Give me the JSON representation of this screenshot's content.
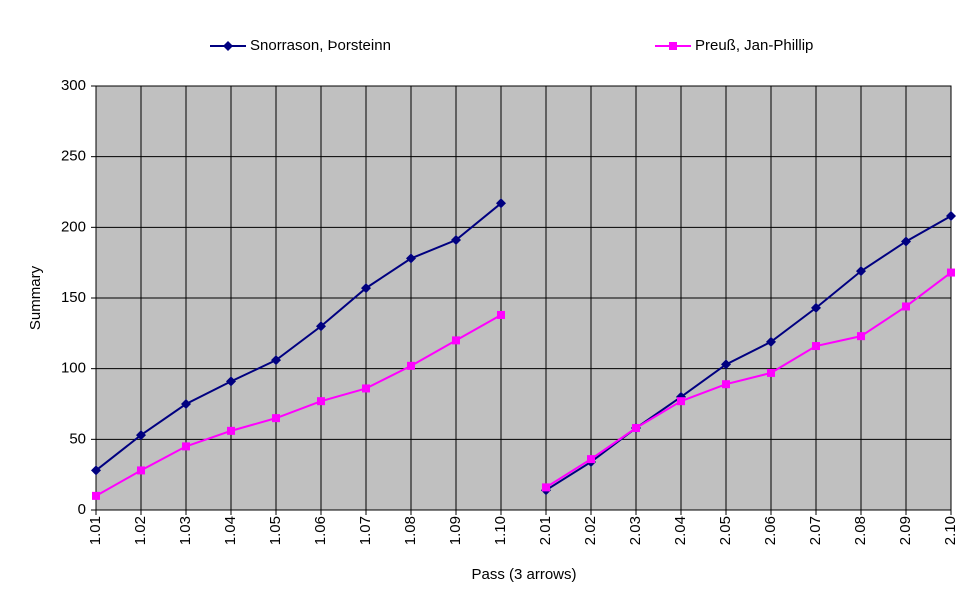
{
  "chart_data": {
    "type": "line",
    "x_label": "Pass (3 arrows)",
    "y_label": "Summary",
    "categories": [
      [
        "1.01",
        "1.02",
        "1.03",
        "1.04",
        "1.05",
        "1.06",
        "1.07",
        "1.08",
        "1.09",
        "1.10"
      ],
      [
        "2.01",
        "2.02",
        "2.03",
        "2.04",
        "2.05",
        "2.06",
        "2.07",
        "2.08",
        "2.09",
        "2.10"
      ]
    ],
    "series": [
      {
        "name": "Snorrason, Þorsteinn",
        "color": "#000080",
        "marker": "diamond",
        "values": [
          [
            28,
            53,
            75,
            91,
            106,
            130,
            157,
            178,
            191,
            217
          ],
          [
            14,
            34,
            58,
            80,
            103,
            119,
            143,
            169,
            190,
            208
          ]
        ]
      },
      {
        "name": "Preuß, Jan-Phillip",
        "color": "#ff00ff",
        "marker": "square",
        "values": [
          [
            10,
            28,
            45,
            56,
            65,
            77,
            86,
            102,
            120,
            138
          ],
          [
            16,
            36,
            58,
            77,
            89,
            97,
            116,
            123,
            144,
            168
          ]
        ]
      }
    ],
    "ylim": [
      0,
      300
    ],
    "yticks": [
      0,
      50,
      100,
      150,
      200,
      250,
      300
    ],
    "grid": true,
    "legend": "top",
    "plot_background": "#c0c0c0"
  }
}
